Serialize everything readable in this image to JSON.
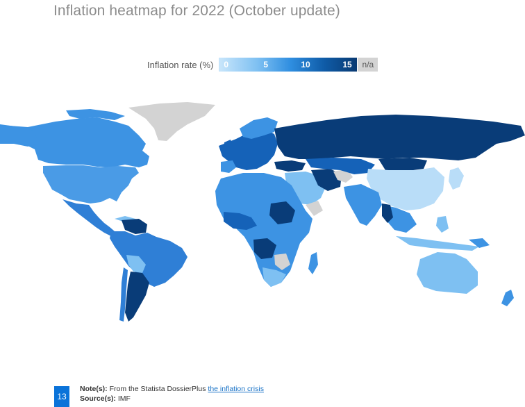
{
  "title": "Inflation heatmap for 2022 (October update)",
  "legend": {
    "label": "Inflation rate (%)",
    "ticks": [
      "0",
      "5",
      "10",
      "15"
    ],
    "na_label": "n/a"
  },
  "colors": {
    "very_low": "#b9ddf8",
    "low": "#7ec0f2",
    "medium": "#3d93e3",
    "high": "#1562b8",
    "very_high": "#093c78",
    "no_data": "#d3d3d3"
  },
  "footer": {
    "page_number": "13",
    "note_label": "Note(s):",
    "note_text": "From the Statista DossierPlus",
    "note_link": "the inflation crisis",
    "source_label": "Source(s):",
    "source_text": "IMF"
  }
}
